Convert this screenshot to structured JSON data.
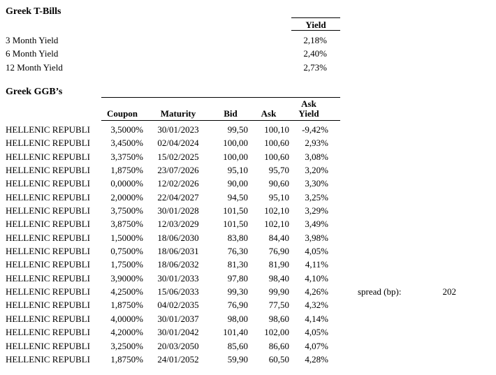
{
  "colors": {
    "background": "#ffffff",
    "text": "#000000",
    "rule": "#000000"
  },
  "t_bills": {
    "title": "Greek T-Bills",
    "yield_header": "Yield",
    "rows": [
      {
        "label": "3 Month Yield",
        "value": "2,18%"
      },
      {
        "label": "6 Month Yield",
        "value": "2,40%"
      },
      {
        "label": "12 Month Yield",
        "value": "2,73%"
      }
    ]
  },
  "ggb": {
    "title": "Greek GGB’s",
    "headers": {
      "name": "",
      "coupon": "Coupon",
      "maturity": "Maturity",
      "bid": "Bid",
      "ask": "Ask",
      "ask_yield_line1": "Ask",
      "ask_yield_line2": "Yield"
    },
    "rows": [
      {
        "name": "HELLENIC REPUBLI",
        "coupon": "3,5000%",
        "maturity": "30/01/2023",
        "bid": "99,50",
        "ask": "100,10",
        "ask_yield": "-9,42%"
      },
      {
        "name": "HELLENIC REPUBLI",
        "coupon": "3,4500%",
        "maturity": "02/04/2024",
        "bid": "100,00",
        "ask": "100,60",
        "ask_yield": "2,93%"
      },
      {
        "name": "HELLENIC REPUBLI",
        "coupon": "3,3750%",
        "maturity": "15/02/2025",
        "bid": "100,00",
        "ask": "100,60",
        "ask_yield": "3,08%"
      },
      {
        "name": "HELLENIC REPUBLI",
        "coupon": "1,8750%",
        "maturity": "23/07/2026",
        "bid": "95,10",
        "ask": "95,70",
        "ask_yield": "3,20%"
      },
      {
        "name": "HELLENIC REPUBLI",
        "coupon": "0,0000%",
        "maturity": "12/02/2026",
        "bid": "90,00",
        "ask": "90,60",
        "ask_yield": "3,30%"
      },
      {
        "name": "HELLENIC REPUBLI",
        "coupon": "2,0000%",
        "maturity": "22/04/2027",
        "bid": "94,50",
        "ask": "95,10",
        "ask_yield": "3,25%"
      },
      {
        "name": "HELLENIC REPUBLI",
        "coupon": "3,7500%",
        "maturity": "30/01/2028",
        "bid": "101,50",
        "ask": "102,10",
        "ask_yield": "3,29%"
      },
      {
        "name": "HELLENIC REPUBLI",
        "coupon": "3,8750%",
        "maturity": "12/03/2029",
        "bid": "101,50",
        "ask": "102,10",
        "ask_yield": "3,49%"
      },
      {
        "name": "HELLENIC REPUBLI",
        "coupon": "1,5000%",
        "maturity": "18/06/2030",
        "bid": "83,80",
        "ask": "84,40",
        "ask_yield": "3,98%"
      },
      {
        "name": "HELLENIC REPUBLI",
        "coupon": "0,7500%",
        "maturity": "18/06/2031",
        "bid": "76,30",
        "ask": "76,90",
        "ask_yield": "4,05%"
      },
      {
        "name": "HELLENIC REPUBLI",
        "coupon": "1,7500%",
        "maturity": "18/06/2032",
        "bid": "81,30",
        "ask": "81,90",
        "ask_yield": "4,11%"
      },
      {
        "name": "HELLENIC REPUBLI",
        "coupon": "3,9000%",
        "maturity": "30/01/2033",
        "bid": "97,80",
        "ask": "98,40",
        "ask_yield": "4,10%"
      },
      {
        "name": "HELLENIC REPUBLI",
        "coupon": "4,2500%",
        "maturity": "15/06/2033",
        "bid": "99,30",
        "ask": "99,90",
        "ask_yield": "4,26%"
      },
      {
        "name": "HELLENIC REPUBLI",
        "coupon": "1,8750%",
        "maturity": "04/02/2035",
        "bid": "76,90",
        "ask": "77,50",
        "ask_yield": "4,32%"
      },
      {
        "name": "HELLENIC REPUBLI",
        "coupon": "4,0000%",
        "maturity": "30/01/2037",
        "bid": "98,00",
        "ask": "98,60",
        "ask_yield": "4,14%"
      },
      {
        "name": "HELLENIC REPUBLI",
        "coupon": "4,2000%",
        "maturity": "30/01/2042",
        "bid": "101,40",
        "ask": "102,00",
        "ask_yield": "4,05%"
      },
      {
        "name": "HELLENIC REPUBLI",
        "coupon": "3,2500%",
        "maturity": "20/03/2050",
        "bid": "85,60",
        "ask": "86,60",
        "ask_yield": "4,07%"
      },
      {
        "name": "HELLENIC REPUBLI",
        "coupon": "1,8750%",
        "maturity": "24/01/2052",
        "bid": "59,90",
        "ask": "60,50",
        "ask_yield": "4,28%"
      }
    ]
  },
  "spread": {
    "label": "spread (bp):",
    "value": "202"
  }
}
